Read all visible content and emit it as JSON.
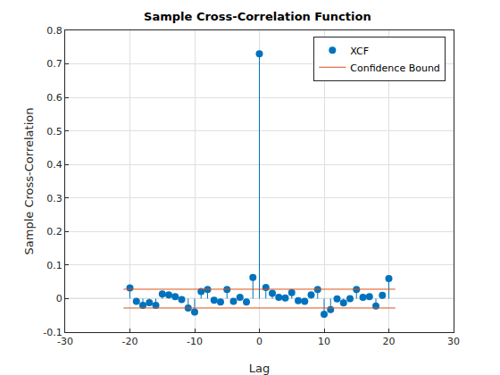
{
  "chart_data": {
    "type": "stem",
    "title": "Sample Cross-Correlation Function",
    "x_label": "Lag",
    "y_label": "Sample Cross-Correlation",
    "xlim": [
      -30,
      30
    ],
    "xticks": [
      -30,
      -20,
      -10,
      0,
      10,
      20,
      30
    ],
    "ylim": [
      -0.1,
      0.8
    ],
    "yticks": [
      -0.1,
      0,
      0.1,
      0.2,
      0.3,
      0.4,
      0.5,
      0.6,
      0.7,
      0.8
    ],
    "grid": true,
    "legend": "top-right",
    "series": [
      {
        "name": "XCF",
        "type": "stem",
        "color": "#0072bd",
        "marker": "circle",
        "line_style": "solid",
        "x": [
          -20,
          -19,
          -18,
          -17,
          -16,
          -15,
          -14,
          -13,
          -12,
          -11,
          -10,
          -9,
          -8,
          -7,
          -6,
          -5,
          -4,
          -3,
          -2,
          -1,
          0,
          1,
          2,
          3,
          4,
          5,
          6,
          7,
          8,
          9,
          10,
          11,
          12,
          13,
          14,
          15,
          16,
          17,
          18,
          19,
          20
        ],
        "values": [
          0.032,
          -0.008,
          -0.02,
          -0.012,
          -0.02,
          0.014,
          0.011,
          0.006,
          -0.003,
          -0.028,
          -0.04,
          0.021,
          0.027,
          -0.005,
          -0.01,
          0.027,
          -0.008,
          0.004,
          -0.01,
          0.063,
          0.73,
          0.033,
          0.016,
          0.004,
          0.002,
          0.018,
          -0.006,
          -0.008,
          0.011,
          0.027,
          -0.047,
          -0.033,
          -0.001,
          -0.013,
          0.0,
          0.027,
          0.004,
          0.006,
          -0.022,
          0.01,
          0.06
        ]
      },
      {
        "name": "Confidence Bound",
        "type": "line",
        "color": "#d95319",
        "line_style": "solid",
        "x": [
          -21,
          21
        ],
        "upper": [
          0.028,
          0.028
        ],
        "lower": [
          -0.028,
          -0.028
        ]
      }
    ]
  }
}
